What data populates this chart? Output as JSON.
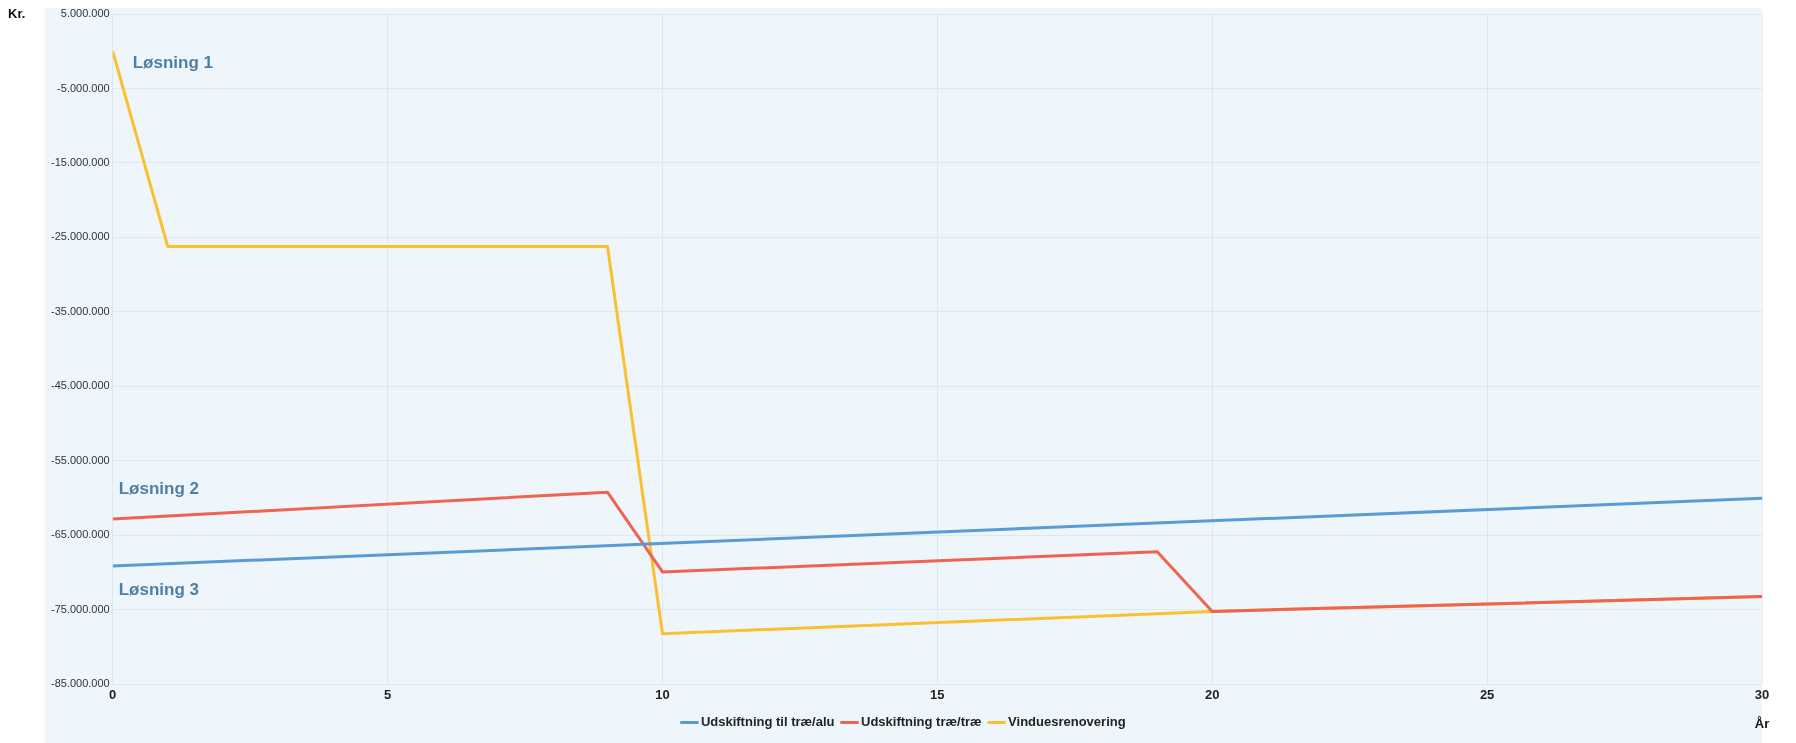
{
  "chart_data": {
    "type": "line",
    "xlabel": "År",
    "ylabel": "Kr.",
    "xlim": [
      0,
      30
    ],
    "xticks": [
      0,
      5,
      10,
      15,
      20,
      25,
      30
    ],
    "ylim": [
      -85000000,
      5000000
    ],
    "yticks": [
      {
        "value": 5000000,
        "label": "5.000.000"
      },
      {
        "value": -5000000,
        "label": "-5.000.000"
      },
      {
        "value": -15000000,
        "label": "-15.000.000"
      },
      {
        "value": -25000000,
        "label": "-25.000.000"
      },
      {
        "value": -35000000,
        "label": "-35.000.000"
      },
      {
        "value": -45000000,
        "label": "-45.000.000"
      },
      {
        "value": -55000000,
        "label": "-55.000.000"
      },
      {
        "value": -65000000,
        "label": "-65.000.000"
      },
      {
        "value": -75000000,
        "label": "-75.000.000"
      },
      {
        "value": -85000000,
        "label": "-85.000.000"
      }
    ],
    "series": [
      {
        "name": "Udskiftning til træ/alu",
        "color": "#5b9bd5",
        "x": [
          0,
          30
        ],
        "values": [
          -69100000,
          -60000000
        ]
      },
      {
        "name": "Udskiftning træ/træ",
        "color": "#ee6450",
        "x": [
          0,
          9,
          10,
          19,
          20,
          30
        ],
        "values": [
          -62800000,
          -59200000,
          -69900000,
          -67200000,
          -75200000,
          -73200000
        ]
      },
      {
        "name": "Vinduesrenovering",
        "color": "#fbc030",
        "x": [
          0,
          1,
          9,
          10,
          20,
          30
        ],
        "values": [
          0,
          -26200000,
          -26200000,
          -78200000,
          -75200000,
          -73200000
        ]
      }
    ],
    "annotations": [
      "Løsning 1",
      "Løsning 2",
      "Løsning 3"
    ],
    "grid": true,
    "legend": "bottom",
    "marker": "none",
    "line_style": "solid"
  }
}
